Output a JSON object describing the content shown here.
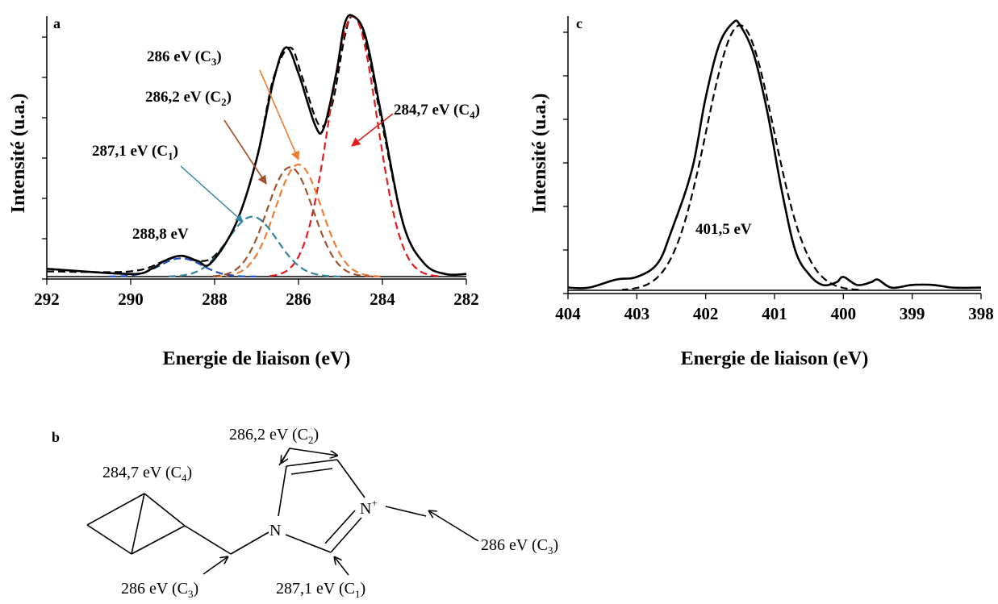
{
  "chart_data": [
    {
      "panel": "a",
      "type": "line",
      "xlabel": "Energie de liaison (eV)",
      "ylabel": "Intensité (u.a.)",
      "xlim": [
        292,
        282
      ],
      "x_reversed": true,
      "x_ticks": [
        "292",
        "290",
        "288",
        "286",
        "284",
        "282"
      ],
      "y_tick_labels_shown": false,
      "series": [
        {
          "role": "experimental",
          "color": "#000000",
          "style": "solid",
          "x": [
            292,
            290,
            289.5,
            289.2,
            288.8,
            288.4,
            288.1,
            287.5,
            287.0,
            286.6,
            286.3,
            286.0,
            285.6,
            285.4,
            285.1,
            284.9,
            284.7,
            284.4,
            284.0,
            283.5,
            283.0,
            282.5,
            282
          ],
          "y": [
            0.03,
            0.01,
            0.03,
            0.06,
            0.08,
            0.06,
            0.05,
            0.2,
            0.45,
            0.75,
            0.88,
            0.78,
            0.58,
            0.57,
            0.78,
            0.97,
            1.0,
            0.92,
            0.6,
            0.2,
            0.05,
            0.01,
            0.01
          ]
        },
        {
          "role": "fit-envelope",
          "color": "#000000",
          "style": "dashed",
          "x": [
            292,
            290,
            289.2,
            288.8,
            288.4,
            288,
            287.5,
            287,
            286.6,
            286.2,
            285.9,
            285.5,
            285.2,
            284.9,
            284.7,
            284.4,
            284,
            283.5,
            283,
            282.5,
            282
          ],
          "y": [
            0.02,
            0.02,
            0.06,
            0.08,
            0.06,
            0.08,
            0.2,
            0.45,
            0.76,
            0.88,
            0.76,
            0.58,
            0.66,
            0.92,
            1.0,
            0.9,
            0.58,
            0.2,
            0.05,
            0.01,
            0.01
          ]
        },
        {
          "role": "component",
          "peak_ev": 284.7,
          "label": "C4",
          "color": "#e41a1c",
          "style": "dashed",
          "amplitude": 1.0,
          "fwhm": 1.35
        },
        {
          "role": "component",
          "peak_ev": 286.0,
          "label": "C3",
          "color": "#ed7d31",
          "style": "dashed",
          "amplitude": 0.43,
          "fwhm": 1.3
        },
        {
          "role": "component",
          "peak_ev": 286.2,
          "label": "C2",
          "color": "#a0522d",
          "style": "dashed",
          "amplitude": 0.42,
          "fwhm": 1.3
        },
        {
          "role": "component",
          "peak_ev": 287.1,
          "label": "C1",
          "color": "#31849b",
          "style": "dashed",
          "amplitude": 0.23,
          "fwhm": 1.4
        },
        {
          "role": "component",
          "peak_ev": 288.8,
          "label": "",
          "color": "#1f4fc1",
          "style": "dashed",
          "amplitude": 0.07,
          "fwhm": 1.2
        }
      ],
      "annotations": [
        {
          "main": "286 eV (C",
          "sub": "3",
          "tail": ")"
        },
        {
          "main": "286,2 eV (C",
          "sub": "2",
          "tail": ")"
        },
        {
          "main": "284,7 eV (C",
          "sub": "4",
          "tail": ")"
        },
        {
          "main": "287,1 eV (C",
          "sub": "1",
          "tail": ")"
        },
        {
          "main": "288,8 eV",
          "sub": "",
          "tail": ""
        }
      ]
    },
    {
      "panel": "c",
      "type": "line",
      "xlabel": "Energie de liaison (eV)",
      "ylabel": "Intensité (u.a.)",
      "xlim": [
        404,
        398
      ],
      "x_reversed": true,
      "x_ticks": [
        "404",
        "403",
        "402",
        "401",
        "400",
        "399",
        "398"
      ],
      "y_tick_labels_shown": false,
      "series": [
        {
          "role": "experimental",
          "color": "#000000",
          "style": "solid",
          "x": [
            404,
            403.7,
            403.3,
            403.0,
            402.7,
            402.5,
            402.2,
            402.0,
            401.8,
            401.6,
            401.5,
            401.3,
            401.1,
            400.9,
            400.7,
            400.5,
            400.3,
            400.1,
            400.0,
            399.8,
            399.6,
            399.5,
            399.3,
            399.0,
            398.7,
            398.4,
            398
          ],
          "y": [
            0.01,
            0.01,
            0.04,
            0.05,
            0.1,
            0.22,
            0.45,
            0.72,
            0.92,
            1.0,
            0.99,
            0.88,
            0.66,
            0.38,
            0.15,
            0.06,
            0.02,
            0.03,
            0.05,
            0.02,
            0.03,
            0.04,
            0.01,
            0.02,
            0.02,
            0.01,
            0.01
          ]
        },
        {
          "role": "fit",
          "color": "#000000",
          "style": "dashed",
          "center_ev": 401.5,
          "amplitude": 0.99,
          "fwhm": 1.15
        }
      ],
      "annotations": [
        {
          "main": "401,5 eV",
          "sub": "",
          "tail": ""
        }
      ]
    }
  ],
  "figure": {
    "panel_letters": [
      "a",
      "b",
      "c"
    ]
  },
  "molecule_b": {
    "atoms": [
      {
        "label": "N",
        "sup": ""
      },
      {
        "label": "N",
        "sup": "+"
      }
    ],
    "labels": [
      {
        "main": "286,2 eV (C",
        "sub": "2",
        "tail": ")"
      },
      {
        "main": "284,7 eV (C",
        "sub": "4",
        "tail": ")"
      },
      {
        "main": "286 eV (C",
        "sub": "3",
        "tail": ")"
      },
      {
        "main": "286 eV (C",
        "sub": "3",
        "tail": ")"
      },
      {
        "main": "287,1 eV (C",
        "sub": "1",
        "tail": ")"
      }
    ]
  }
}
